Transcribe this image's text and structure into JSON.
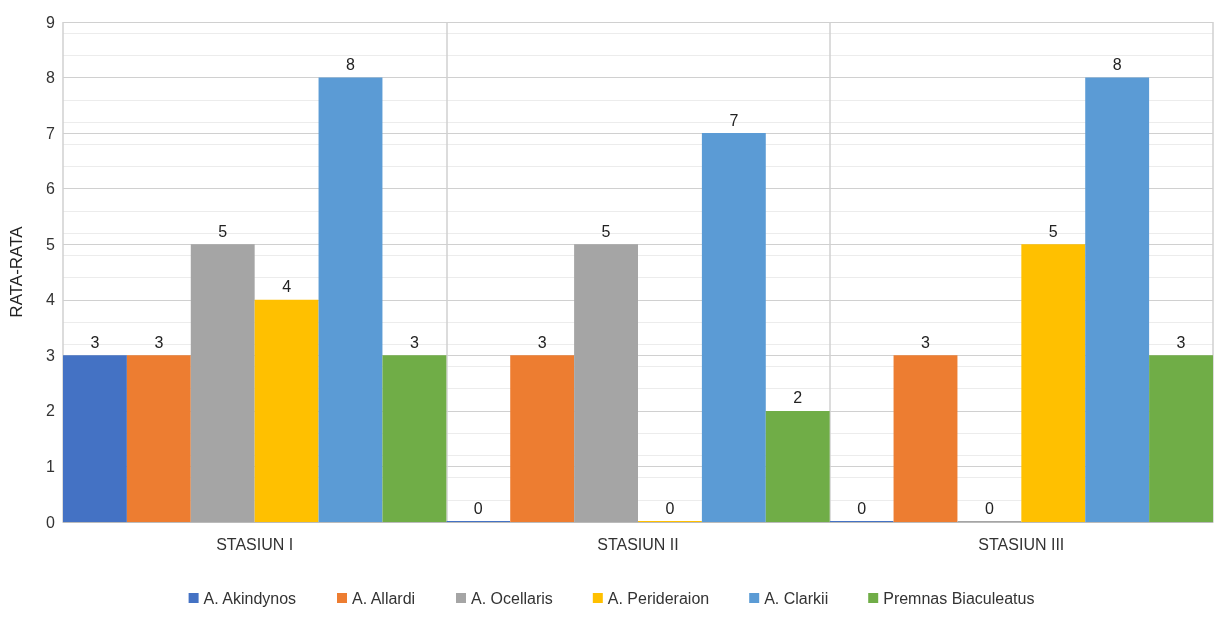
{
  "chart_data": {
    "type": "bar",
    "ylabel": "RATA-RATA",
    "categories": [
      "STASIUN I",
      "STASIUN II",
      "STASIUN III"
    ],
    "series": [
      {
        "name": "A. Akindynos",
        "color": "#4472c4",
        "values": [
          3,
          0,
          0
        ]
      },
      {
        "name": "A. Allardi",
        "color": "#ed7d31",
        "values": [
          3,
          3,
          3
        ]
      },
      {
        "name": "A. Ocellaris",
        "color": "#a5a5a5",
        "values": [
          5,
          5,
          0
        ]
      },
      {
        "name": "A. Perideraion",
        "color": "#ffc000",
        "values": [
          4,
          0,
          5
        ]
      },
      {
        "name": "A. Clarkii",
        "color": "#5b9bd5",
        "values": [
          8,
          7,
          8
        ]
      },
      {
        "name": "Premnas Biaculeatus",
        "color": "#70ad47",
        "values": [
          3,
          2,
          3
        ]
      }
    ],
    "ylim": [
      0,
      9
    ],
    "yticks": [
      0,
      1,
      2,
      3,
      4,
      5,
      6,
      7,
      8,
      9
    ],
    "grid": true,
    "legend": "bottom",
    "data_labels": true
  }
}
